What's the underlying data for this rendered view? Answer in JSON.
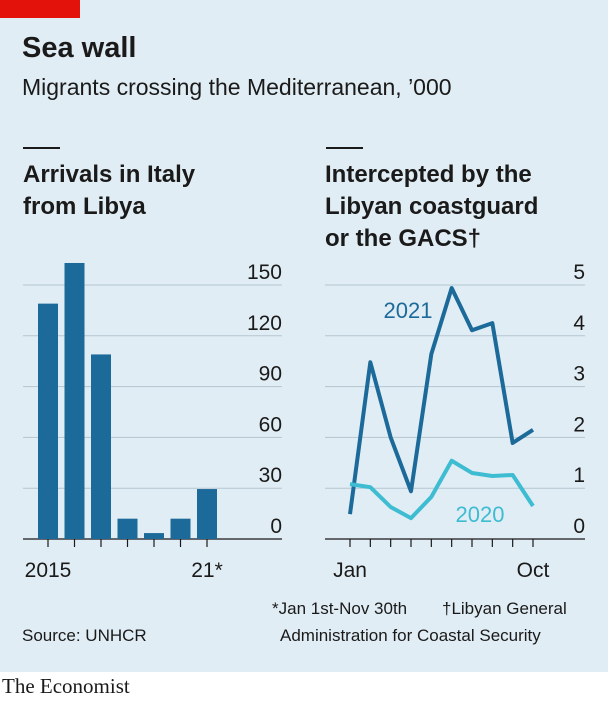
{
  "title": "Sea wall",
  "subtitle": "Migrants crossing the Mediterranean, ’000",
  "notes": [
    "*Jan 1st-Nov 30th",
    "†Libyan General",
    "Administration for Coastal Security"
  ],
  "source": "Source: UNHCR",
  "brand": "The Economist",
  "chart_data": [
    {
      "type": "bar",
      "title": [
        "Arrivals in Italy",
        "from Libya"
      ],
      "categories": [
        "2015",
        null,
        null,
        null,
        null,
        null,
        "21*"
      ],
      "values": [
        139,
        163,
        109,
        12,
        3.5,
        12,
        29.5
      ],
      "color": "#1c6a9a",
      "ylim": [
        0,
        150
      ],
      "yticks": [
        0,
        30,
        60,
        90,
        120,
        150
      ],
      "grid": true
    },
    {
      "type": "line",
      "title": [
        "Intercepted by the",
        "Libyan coastguard",
        "or the GACS†"
      ],
      "categories": [
        "Jan",
        null,
        null,
        null,
        null,
        null,
        null,
        null,
        null,
        "Oct"
      ],
      "series": [
        {
          "name": "2021",
          "color": "#1c6a9a",
          "values": [
            0.49,
            3.48,
            2.0,
            0.94,
            3.64,
            4.94,
            4.11,
            4.25,
            1.89,
            2.15
          ]
        },
        {
          "name": "2020",
          "color": "#3ebcd2",
          "values": [
            1.08,
            1.02,
            0.63,
            0.41,
            0.83,
            1.54,
            1.3,
            1.24,
            1.26,
            0.65
          ]
        }
      ],
      "ylim": [
        0,
        5
      ],
      "yticks": [
        0,
        1,
        2,
        3,
        4,
        5
      ],
      "grid": true
    }
  ]
}
